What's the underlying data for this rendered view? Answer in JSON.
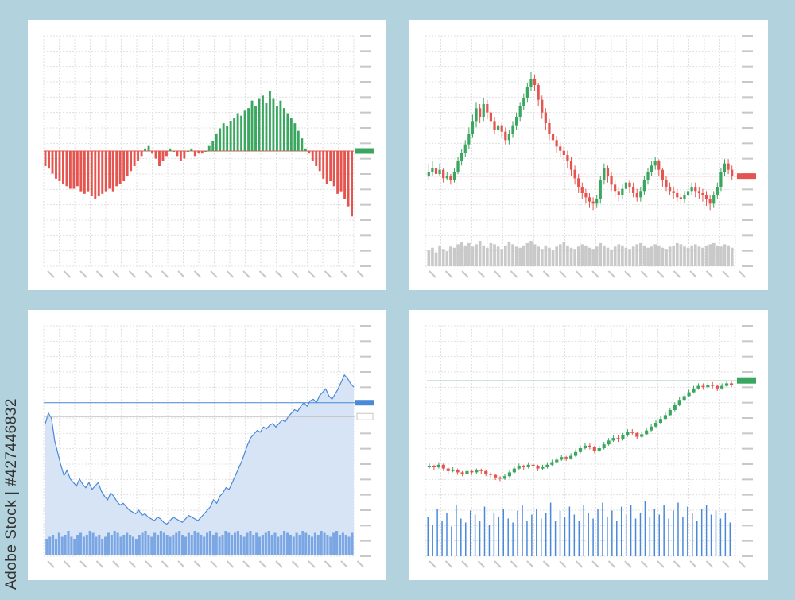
{
  "stock_id": "Adobe Stock | #427446832",
  "colors": {
    "background": "#b2d2dd",
    "panel": "#ffffff",
    "grid": "#e1e1e1",
    "tick": "#c8c8c8",
    "up": "#3aa660",
    "down": "#e5544e",
    "volume_gray": "#c9c9c9",
    "blue_line": "#4a88d8",
    "blue_area": "#d6e4f6",
    "blue_volume": "#7aa6e4"
  },
  "chart_data": [
    {
      "type": "bar",
      "title": "",
      "description_kind": "histogram",
      "values": [
        -6,
        -7,
        -9,
        -11,
        -12,
        -13,
        -14,
        -15,
        -15,
        -14,
        -16,
        -17,
        -16,
        -18,
        -19,
        -18,
        -17,
        -16,
        -15,
        -16,
        -14,
        -13,
        -12,
        -10,
        -8,
        -6,
        -4,
        -2,
        1,
        2,
        -1,
        -3,
        -6,
        -4,
        -2,
        1,
        0,
        -2,
        -4,
        -3,
        0,
        1,
        -2,
        -1,
        -1,
        0,
        2,
        4,
        7,
        9,
        11,
        10,
        12,
        13,
        15,
        14,
        16,
        17,
        20,
        18,
        21,
        22,
        19,
        24,
        21,
        18,
        20,
        17,
        15,
        13,
        11,
        8,
        5,
        1,
        -1,
        -4,
        -6,
        -8,
        -11,
        -13,
        -12,
        -14,
        -17,
        -16,
        -19,
        -22,
        -26
      ],
      "ylim": [
        -30,
        30
      ],
      "zero_line_marker": "green",
      "grid": true
    },
    {
      "type": "candlestick",
      "title": "",
      "candles": [
        [
          40,
          42,
          46,
          38
        ],
        [
          42,
          44,
          47,
          40
        ],
        [
          44,
          41,
          45,
          39
        ],
        [
          41,
          43,
          46,
          40
        ],
        [
          43,
          39,
          44,
          37
        ],
        [
          39,
          40,
          42,
          38
        ],
        [
          40,
          38,
          41,
          36
        ],
        [
          38,
          42,
          44,
          37
        ],
        [
          42,
          47,
          49,
          41
        ],
        [
          47,
          51,
          53,
          45
        ],
        [
          51,
          55,
          57,
          49
        ],
        [
          55,
          60,
          63,
          53
        ],
        [
          60,
          66,
          69,
          58
        ],
        [
          66,
          72,
          75,
          63
        ],
        [
          72,
          68,
          74,
          65
        ],
        [
          68,
          74,
          77,
          66
        ],
        [
          74,
          70,
          76,
          67
        ],
        [
          70,
          66,
          72,
          63
        ],
        [
          66,
          62,
          68,
          60
        ],
        [
          62,
          64,
          66,
          59
        ],
        [
          64,
          61,
          65,
          58
        ],
        [
          61,
          57,
          63,
          55
        ],
        [
          57,
          60,
          62,
          55
        ],
        [
          60,
          64,
          66,
          58
        ],
        [
          64,
          68,
          70,
          62
        ],
        [
          68,
          73,
          75,
          66
        ],
        [
          73,
          77,
          79,
          71
        ],
        [
          77,
          82,
          84,
          75
        ],
        [
          82,
          86,
          89,
          80
        ],
        [
          86,
          83,
          88,
          80
        ],
        [
          83,
          76,
          84,
          73
        ],
        [
          76,
          70,
          78,
          67
        ],
        [
          70,
          65,
          72,
          62
        ],
        [
          65,
          60,
          67,
          57
        ],
        [
          60,
          57,
          62,
          54
        ],
        [
          57,
          54,
          59,
          51
        ],
        [
          54,
          52,
          56,
          49
        ],
        [
          52,
          50,
          54,
          47
        ],
        [
          50,
          47,
          52,
          44
        ],
        [
          47,
          43,
          49,
          40
        ],
        [
          43,
          39,
          45,
          36
        ],
        [
          39,
          35,
          41,
          32
        ],
        [
          35,
          32,
          37,
          29
        ],
        [
          32,
          30,
          34,
          27
        ],
        [
          30,
          28,
          32,
          25
        ],
        [
          28,
          27,
          30,
          24
        ],
        [
          27,
          29,
          31,
          25
        ],
        [
          29,
          38,
          40,
          27
        ],
        [
          38,
          44,
          46,
          36
        ],
        [
          44,
          40,
          45,
          37
        ],
        [
          40,
          36,
          42,
          33
        ],
        [
          36,
          33,
          38,
          30
        ],
        [
          33,
          31,
          35,
          28
        ],
        [
          31,
          34,
          36,
          29
        ],
        [
          34,
          37,
          39,
          32
        ],
        [
          37,
          35,
          38,
          32
        ],
        [
          35,
          32,
          37,
          30
        ],
        [
          32,
          30,
          34,
          28
        ],
        [
          30,
          33,
          35,
          28
        ],
        [
          33,
          38,
          40,
          31
        ],
        [
          38,
          42,
          44,
          36
        ],
        [
          42,
          45,
          47,
          40
        ],
        [
          45,
          47,
          49,
          43
        ],
        [
          47,
          43,
          48,
          40
        ],
        [
          43,
          38,
          44,
          35
        ],
        [
          38,
          35,
          40,
          33
        ],
        [
          35,
          33,
          37,
          31
        ],
        [
          33,
          32,
          35,
          29
        ],
        [
          32,
          30,
          34,
          28
        ],
        [
          30,
          29,
          32,
          27
        ],
        [
          29,
          31,
          33,
          27
        ],
        [
          31,
          33,
          35,
          29
        ],
        [
          33,
          35,
          37,
          31
        ],
        [
          35,
          33,
          37,
          30
        ],
        [
          33,
          32,
          35,
          29
        ],
        [
          32,
          31,
          34,
          28
        ],
        [
          31,
          29,
          33,
          26
        ],
        [
          29,
          27,
          31,
          24
        ],
        [
          27,
          31,
          33,
          25
        ],
        [
          31,
          35,
          37,
          29
        ],
        [
          35,
          42,
          44,
          33
        ],
        [
          42,
          46,
          48,
          40
        ],
        [
          46,
          43,
          48,
          41
        ],
        [
          43,
          40,
          45,
          38
        ]
      ],
      "reference_line": 40,
      "volume": [
        14,
        16,
        12,
        18,
        15,
        13,
        17,
        16,
        19,
        21,
        18,
        20,
        17,
        19,
        22,
        18,
        16,
        20,
        19,
        17,
        15,
        18,
        21,
        19,
        17,
        16,
        18,
        20,
        22,
        19,
        17,
        15,
        18,
        16,
        14,
        17,
        19,
        21,
        18,
        16,
        15,
        17,
        19,
        18,
        16,
        15,
        17,
        20,
        18,
        16,
        14,
        17,
        19,
        18,
        16,
        15,
        17,
        19,
        20,
        18,
        16,
        17,
        19,
        18,
        16,
        15,
        17,
        18,
        20,
        19,
        17,
        16,
        18,
        19,
        17,
        16,
        18,
        19,
        20,
        18,
        17,
        19,
        18,
        16
      ],
      "ylim": [
        20,
        95
      ],
      "reference_marker": "red",
      "grid": true
    },
    {
      "type": "area",
      "title": "",
      "values": [
        72,
        78,
        75,
        62,
        55,
        48,
        42,
        45,
        40,
        38,
        36,
        40,
        37,
        35,
        38,
        34,
        36,
        38,
        33,
        30,
        28,
        32,
        30,
        27,
        25,
        26,
        24,
        22,
        21,
        20,
        22,
        19,
        20,
        18,
        17,
        16,
        18,
        17,
        15,
        14,
        16,
        18,
        17,
        16,
        15,
        17,
        19,
        18,
        17,
        16,
        18,
        20,
        22,
        24,
        28,
        26,
        30,
        32,
        35,
        34,
        38,
        42,
        46,
        50,
        55,
        60,
        64,
        66,
        68,
        67,
        70,
        69,
        71,
        72,
        70,
        72,
        74,
        73,
        76,
        78,
        80,
        79,
        82,
        84,
        82,
        85,
        86,
        84,
        88,
        90,
        92,
        88,
        86,
        89,
        92,
        96,
        100,
        98,
        95,
        93
      ],
      "reference_line": 84,
      "secondary_line": 76,
      "volume": [
        8,
        9,
        10,
        8,
        11,
        9,
        10,
        12,
        9,
        8,
        10,
        11,
        9,
        10,
        12,
        11,
        9,
        10,
        8,
        9,
        11,
        10,
        12,
        11,
        9,
        10,
        11,
        10,
        9,
        8,
        10,
        11,
        12,
        10,
        9,
        11,
        10,
        12,
        11,
        10,
        9,
        10,
        11,
        12,
        10,
        9,
        11,
        10,
        12,
        11,
        10,
        9,
        11,
        12,
        10,
        11,
        9,
        10,
        12,
        11,
        10,
        11,
        12,
        10,
        9,
        11,
        12,
        10,
        11,
        9,
        10,
        11,
        12,
        10,
        11,
        9,
        10,
        12,
        11,
        10,
        9,
        11,
        10,
        12,
        11,
        10,
        9,
        11,
        10,
        12,
        11,
        10,
        9,
        11,
        12,
        10,
        11,
        10,
        9,
        11
      ],
      "ylim": [
        0,
        110
      ],
      "reference_marker": "blue",
      "grid": true
    },
    {
      "type": "candlestick",
      "title": "",
      "candles": [
        [
          20,
          21,
          23,
          19
        ],
        [
          21,
          20,
          22,
          18
        ],
        [
          20,
          22,
          24,
          19
        ],
        [
          22,
          19,
          23,
          17
        ],
        [
          19,
          17,
          20,
          15
        ],
        [
          17,
          18,
          20,
          16
        ],
        [
          18,
          16,
          19,
          14
        ],
        [
          16,
          15,
          17,
          13
        ],
        [
          15,
          17,
          18,
          14
        ],
        [
          17,
          16,
          18,
          14
        ],
        [
          16,
          18,
          19,
          15
        ],
        [
          18,
          17,
          19,
          15
        ],
        [
          17,
          15,
          18,
          13
        ],
        [
          15,
          14,
          16,
          12
        ],
        [
          14,
          12,
          15,
          10
        ],
        [
          12,
          11,
          13,
          9
        ],
        [
          11,
          13,
          15,
          10
        ],
        [
          13,
          16,
          18,
          12
        ],
        [
          16,
          19,
          21,
          15
        ],
        [
          19,
          21,
          23,
          18
        ],
        [
          21,
          20,
          22,
          18
        ],
        [
          20,
          22,
          24,
          19
        ],
        [
          22,
          21,
          23,
          19
        ],
        [
          21,
          19,
          22,
          17
        ],
        [
          19,
          20,
          22,
          18
        ],
        [
          20,
          22,
          24,
          19
        ],
        [
          22,
          24,
          26,
          21
        ],
        [
          24,
          26,
          28,
          23
        ],
        [
          26,
          28,
          30,
          25
        ],
        [
          28,
          27,
          29,
          25
        ],
        [
          27,
          29,
          31,
          26
        ],
        [
          29,
          32,
          34,
          28
        ],
        [
          32,
          35,
          37,
          31
        ],
        [
          35,
          37,
          39,
          34
        ],
        [
          37,
          36,
          39,
          34
        ],
        [
          36,
          33,
          37,
          31
        ],
        [
          33,
          35,
          37,
          32
        ],
        [
          35,
          38,
          40,
          34
        ],
        [
          38,
          41,
          43,
          37
        ],
        [
          41,
          43,
          45,
          40
        ],
        [
          43,
          42,
          45,
          40
        ],
        [
          42,
          45,
          47,
          41
        ],
        [
          45,
          48,
          50,
          44
        ],
        [
          48,
          47,
          50,
          45
        ],
        [
          47,
          44,
          48,
          42
        ],
        [
          44,
          46,
          48,
          43
        ],
        [
          46,
          49,
          51,
          45
        ],
        [
          49,
          52,
          54,
          48
        ],
        [
          52,
          55,
          57,
          51
        ],
        [
          55,
          58,
          60,
          54
        ],
        [
          58,
          61,
          63,
          57
        ],
        [
          61,
          65,
          67,
          60
        ],
        [
          65,
          69,
          71,
          64
        ],
        [
          69,
          73,
          75,
          68
        ],
        [
          73,
          76,
          78,
          72
        ],
        [
          76,
          79,
          81,
          75
        ],
        [
          79,
          82,
          84,
          78
        ],
        [
          82,
          84,
          86,
          81
        ],
        [
          84,
          83,
          86,
          81
        ],
        [
          83,
          85,
          87,
          82
        ],
        [
          85,
          84,
          87,
          82
        ],
        [
          84,
          82,
          85,
          80
        ],
        [
          82,
          84,
          86,
          81
        ],
        [
          84,
          86,
          88,
          83
        ],
        [
          86,
          85,
          88,
          83
        ]
      ],
      "reference_line": 88,
      "volume": [
        20,
        16,
        24,
        18,
        22,
        15,
        26,
        19,
        17,
        23,
        21,
        18,
        25,
        16,
        22,
        20,
        24,
        19,
        17,
        23,
        26,
        18,
        21,
        24,
        19,
        22,
        27,
        18,
        23,
        20,
        25,
        21,
        18,
        26,
        22,
        19,
        24,
        27,
        20,
        23,
        18,
        25,
        21,
        26,
        19,
        22,
        28,
        20,
        24,
        21,
        26,
        19,
        23,
        27,
        20,
        25,
        22,
        18,
        24,
        26,
        21,
        23,
        19,
        22,
        17
      ],
      "ylim": [
        0,
        100
      ],
      "reference_marker": "green",
      "grid": true
    }
  ]
}
